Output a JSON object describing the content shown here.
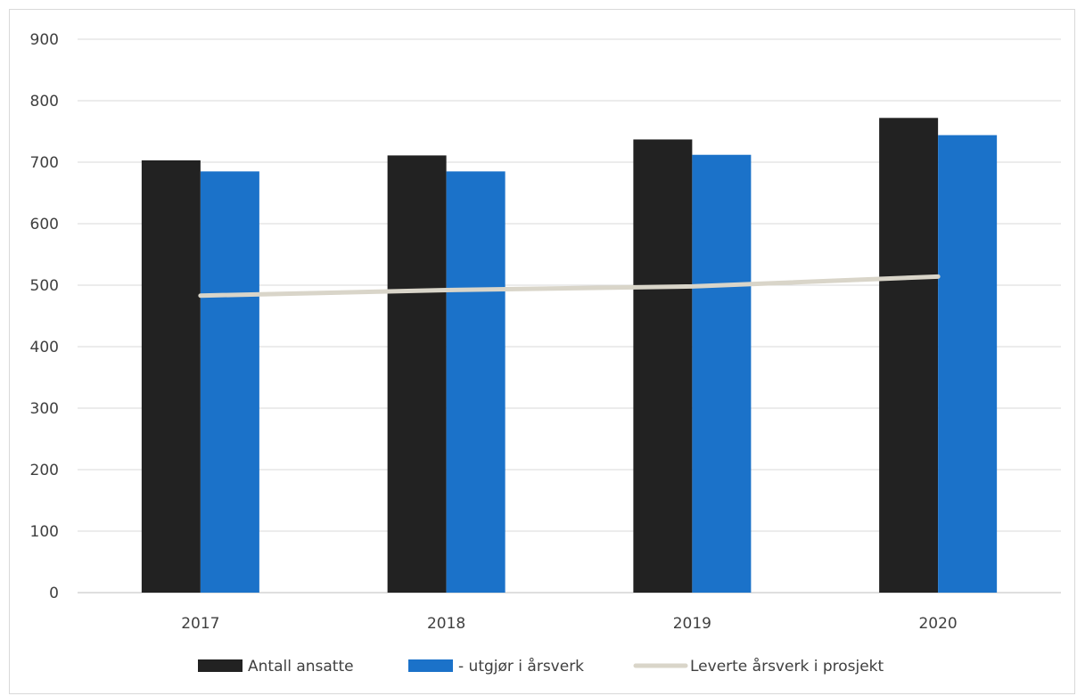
{
  "chart_data": {
    "type": "bar",
    "categories": [
      "2017",
      "2018",
      "2019",
      "2020"
    ],
    "series": [
      {
        "name": "Antall ansatte",
        "kind": "bar",
        "color": "#222222",
        "values": [
          703,
          711,
          737,
          772
        ]
      },
      {
        "name": "- utgjør i årsverk",
        "kind": "bar",
        "color": "#1b72c9",
        "values": [
          685,
          685,
          712,
          744
        ]
      },
      {
        "name": "Leverte årsverk i prosjekt",
        "kind": "line",
        "color": "#d9d5c9",
        "values": [
          483,
          492,
          498,
          514
        ]
      }
    ],
    "y_ticks": [
      "0",
      "100",
      "200",
      "300",
      "400",
      "500",
      "600",
      "700",
      "800",
      "900"
    ],
    "ylim": [
      0,
      900
    ],
    "grid": true,
    "legend_position": "bottom"
  }
}
